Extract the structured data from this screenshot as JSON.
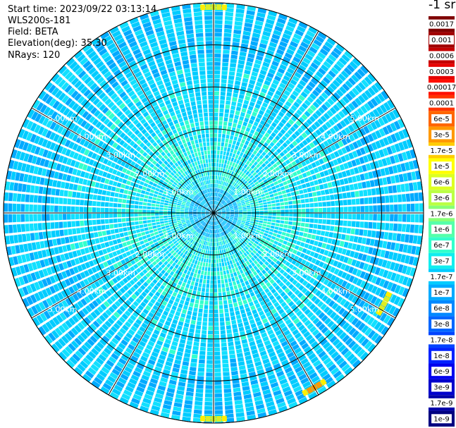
{
  "header": {
    "start_time": "Start time: 2023/09/22 03:13:14",
    "instrument": "WLS200s-181",
    "field": "Field: BETA",
    "elevation": "Elevation(deg): 35.30",
    "nrays": "NRays: 120"
  },
  "colorbar": {
    "unit": "-1 sr",
    "levels": [
      {
        "label": "0.0017",
        "color": "#7f0000"
      },
      {
        "label": "0.001",
        "color": "#a10000"
      },
      {
        "label": "0.0006",
        "color": "#c40000"
      },
      {
        "label": "0.0003",
        "color": "#e60000"
      },
      {
        "label": "0.00017",
        "color": "#ff0f00"
      },
      {
        "label": "0.0001",
        "color": "#ff3300"
      },
      {
        "label": "6e-5",
        "color": "#ff6600"
      },
      {
        "label": "3e-5",
        "color": "#ff9900"
      },
      {
        "label": "1.7e-5",
        "color": "#ffcc00"
      },
      {
        "label": "1e-5",
        "color": "#ffff00"
      },
      {
        "label": "6e-6",
        "color": "#ddff22"
      },
      {
        "label": "3e-6",
        "color": "#bbff44"
      },
      {
        "label": "1.7e-6",
        "color": "#88ff77"
      },
      {
        "label": "1e-6",
        "color": "#55ffaa"
      },
      {
        "label": "6e-7",
        "color": "#33ffcc"
      },
      {
        "label": "3e-7",
        "color": "#11eeee"
      },
      {
        "label": "1.7e-7",
        "color": "#00ccff"
      },
      {
        "label": "1e-7",
        "color": "#00aaff"
      },
      {
        "label": "6e-8",
        "color": "#0088ff"
      },
      {
        "label": "3e-8",
        "color": "#0066ff"
      },
      {
        "label": "1.7e-8",
        "color": "#0044ff"
      },
      {
        "label": "1e-8",
        "color": "#0022ff"
      },
      {
        "label": "6e-9",
        "color": "#0000ee"
      },
      {
        "label": "3e-9",
        "color": "#0000cc"
      },
      {
        "label": "1.7e-9",
        "color": "#0000a8"
      },
      {
        "label": "1e-9",
        "color": "#000080"
      }
    ]
  },
  "chart_data": {
    "type": "heatmap",
    "projection": "polar (PPI scan)",
    "rays": 120,
    "max_range_km": 5.0,
    "range_rings_km": [
      1.0,
      2.0,
      3.0,
      4.0,
      5.0
    ],
    "range_labels": [
      "1.00km",
      "2.00km",
      "3.00km",
      "4.00km",
      "5.00km"
    ],
    "spokes_deg": [
      0,
      30,
      60,
      90,
      120,
      150,
      180,
      210,
      240,
      270,
      300,
      330
    ],
    "dominant_value_range": [
      "1e-7",
      "3e-7"
    ],
    "near_range_value": "6e-8",
    "far_range_value": "1e-7",
    "hotspots": [
      {
        "azimuth_deg": 0,
        "range_km": 4.9,
        "value": "3e-6"
      },
      {
        "azimuth_deg": 180,
        "range_km": 4.9,
        "value": "3e-6"
      },
      {
        "azimuth_deg": 150,
        "range_km": 4.8,
        "value": "6e-6"
      },
      {
        "azimuth_deg": 118,
        "range_km": 4.6,
        "value": "3e-6"
      }
    ]
  }
}
